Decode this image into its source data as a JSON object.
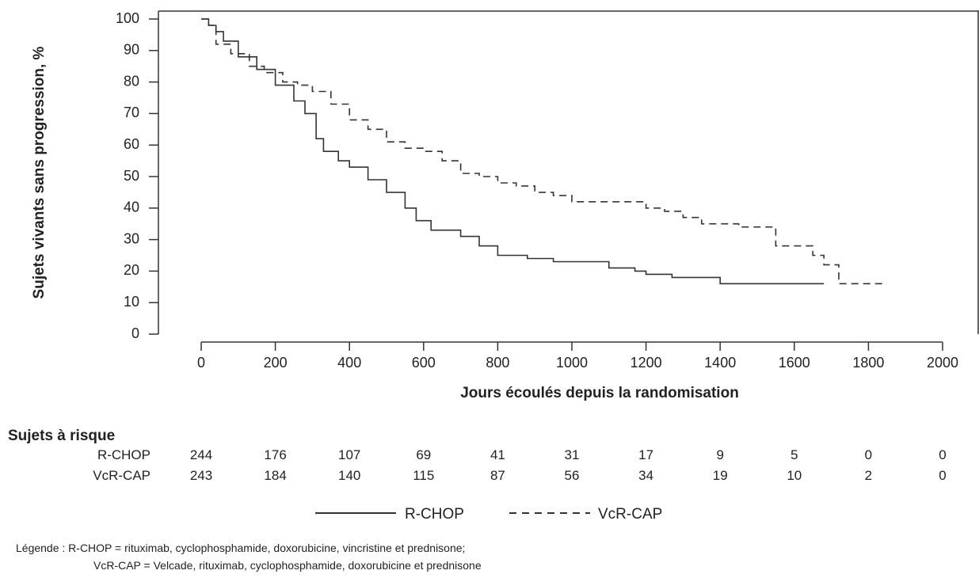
{
  "chart_data": {
    "type": "line",
    "title": "",
    "xlabel": "Jours écoulés depuis la randomisation",
    "ylabel": "Sujets vivants sans progression, %",
    "xlim": [
      0,
      2000
    ],
    "ylim": [
      0,
      100
    ],
    "x_ticks": [
      "0",
      "200",
      "400",
      "600",
      "800",
      "1000",
      "1200",
      "1400",
      "1600",
      "1800",
      "2000"
    ],
    "y_ticks": [
      "0",
      "10",
      "20",
      "30",
      "40",
      "50",
      "60",
      "70",
      "80",
      "90",
      "100"
    ],
    "grid": false,
    "legend_position": "bottom",
    "series": [
      {
        "name": "R-CHOP",
        "style": "solid",
        "color": "#333333",
        "points": [
          [
            0,
            100
          ],
          [
            20,
            98
          ],
          [
            40,
            96
          ],
          [
            60,
            93
          ],
          [
            100,
            88
          ],
          [
            150,
            84
          ],
          [
            200,
            79
          ],
          [
            250,
            74
          ],
          [
            280,
            70
          ],
          [
            310,
            62
          ],
          [
            330,
            58
          ],
          [
            370,
            55
          ],
          [
            400,
            53
          ],
          [
            450,
            49
          ],
          [
            500,
            45
          ],
          [
            550,
            40
          ],
          [
            580,
            36
          ],
          [
            620,
            33
          ],
          [
            700,
            31
          ],
          [
            750,
            28
          ],
          [
            800,
            25
          ],
          [
            880,
            24
          ],
          [
            950,
            23
          ],
          [
            1040,
            23
          ],
          [
            1100,
            21
          ],
          [
            1170,
            20
          ],
          [
            1200,
            19
          ],
          [
            1270,
            18
          ],
          [
            1350,
            18
          ],
          [
            1400,
            16
          ],
          [
            1500,
            16
          ],
          [
            1600,
            16
          ],
          [
            1680,
            16
          ]
        ]
      },
      {
        "name": "VcR-CAP",
        "style": "dashed",
        "color": "#333333",
        "points": [
          [
            0,
            100
          ],
          [
            20,
            98
          ],
          [
            40,
            92
          ],
          [
            80,
            89
          ],
          [
            130,
            85
          ],
          [
            170,
            83
          ],
          [
            220,
            80
          ],
          [
            260,
            79
          ],
          [
            300,
            77
          ],
          [
            350,
            73
          ],
          [
            400,
            68
          ],
          [
            450,
            65
          ],
          [
            500,
            61
          ],
          [
            550,
            59
          ],
          [
            600,
            58
          ],
          [
            650,
            55
          ],
          [
            700,
            51
          ],
          [
            750,
            50
          ],
          [
            800,
            48
          ],
          [
            850,
            47
          ],
          [
            900,
            45
          ],
          [
            950,
            44
          ],
          [
            1000,
            42
          ],
          [
            1100,
            42
          ],
          [
            1200,
            40
          ],
          [
            1250,
            39
          ],
          [
            1300,
            37
          ],
          [
            1350,
            35
          ],
          [
            1450,
            34
          ],
          [
            1550,
            28
          ],
          [
            1650,
            25
          ],
          [
            1680,
            22
          ],
          [
            1720,
            16
          ],
          [
            1850,
            16
          ]
        ]
      }
    ]
  },
  "risk_table": {
    "title": "Sujets à risque",
    "rows": [
      {
        "label": "R-CHOP",
        "values": [
          "244",
          "176",
          "107",
          "69",
          "41",
          "31",
          "17",
          "9",
          "5",
          "0",
          "0"
        ]
      },
      {
        "label": "VcR-CAP",
        "values": [
          "243",
          "184",
          "140",
          "115",
          "87",
          "56",
          "34",
          "19",
          "10",
          "2",
          "0"
        ]
      }
    ]
  },
  "legend": {
    "rchop": "R-CHOP",
    "vcrcap": "VcR-CAP"
  },
  "footnote": {
    "line1": "Légende : R-CHOP = rituximab, cyclophosphamide, doxorubicine, vincristine et prednisone;",
    "line2": "VcR-CAP = Velcade, rituximab, cyclophosphamide, doxorubicine et prednisone"
  }
}
